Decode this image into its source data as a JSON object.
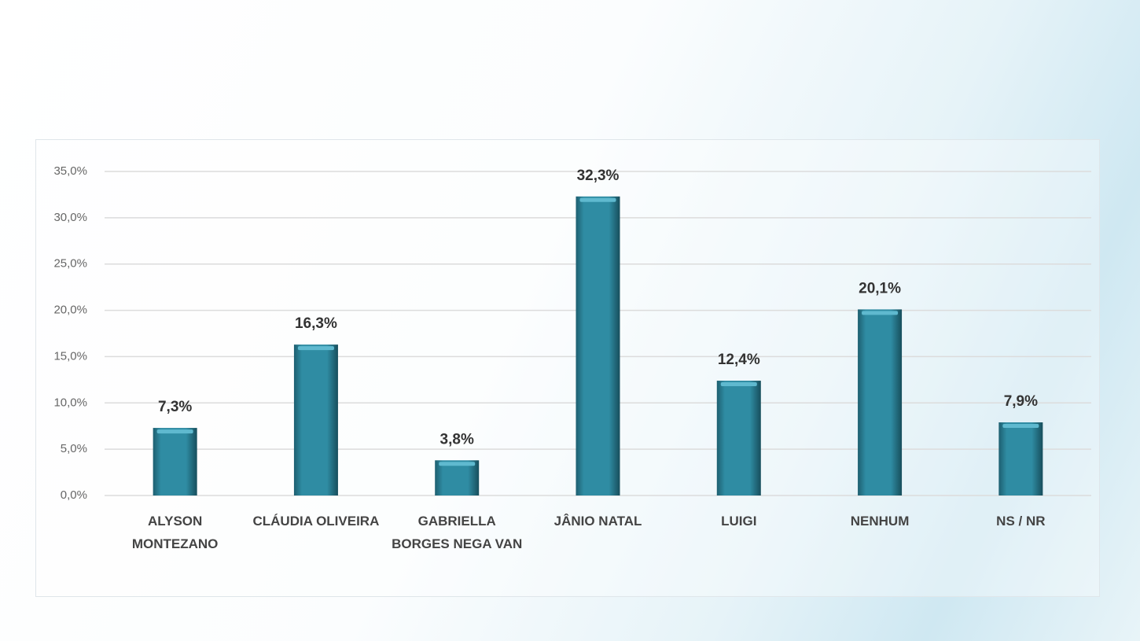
{
  "chart_data": {
    "type": "bar",
    "categories": [
      "ALYSON MONTEZANO",
      "CLÁUDIA OLIVEIRA",
      "GABRIELLA BORGES NEGA VAN",
      "JÂNIO NATAL",
      "LUIGI",
      "NENHUM",
      "NS / NR"
    ],
    "values": [
      7.3,
      16.3,
      3.8,
      32.3,
      12.4,
      20.1,
      7.9
    ],
    "value_labels": [
      "7,3%",
      "16,3%",
      "3,8%",
      "32,3%",
      "12,4%",
      "20,1%",
      "7,9%"
    ],
    "color": "#2f8ca3",
    "ylim": [
      0,
      35
    ],
    "yticks": [
      {
        "value": 0,
        "label": "0,0%"
      },
      {
        "value": 5,
        "label": "5,0%"
      },
      {
        "value": 10,
        "label": "10,0%"
      },
      {
        "value": 15,
        "label": "15,0%"
      },
      {
        "value": 20,
        "label": "20,0%"
      },
      {
        "value": 25,
        "label": "25,0%"
      },
      {
        "value": 30,
        "label": "30,0%"
      },
      {
        "value": 35,
        "label": "35,0%"
      }
    ],
    "grid": true
  }
}
